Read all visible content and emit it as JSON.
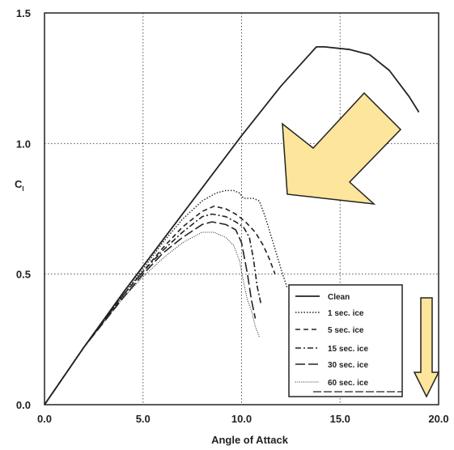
{
  "chart_data": {
    "type": "line",
    "xlabel": "Angle of Attack",
    "ylabel": "C",
    "ylabel_sub": "l",
    "xlim": [
      0,
      20
    ],
    "ylim": [
      0,
      1.5
    ],
    "x_ticks": [
      "0.0",
      "5.0",
      "10.0",
      "15.0",
      "20.0"
    ],
    "y_ticks": [
      "0.0",
      "0.5",
      "1.0",
      "1.5"
    ],
    "grid": "dotted, major ticks",
    "legend_placement": "bottom-right",
    "series": [
      {
        "name": "Clean",
        "style": "solid",
        "x": [
          0,
          2,
          4,
          6,
          8,
          10,
          12,
          13.8,
          14.2,
          15.5,
          16.5,
          17.5,
          18.5,
          19
        ],
        "y": [
          0,
          0.22,
          0.43,
          0.63,
          0.83,
          1.03,
          1.22,
          1.37,
          1.37,
          1.36,
          1.34,
          1.28,
          1.18,
          1.12
        ]
      },
      {
        "name": "1 sec. ice",
        "style": "dotted",
        "x": [
          0,
          2,
          4,
          5,
          6,
          7,
          8,
          8.7,
          9.2,
          9.6,
          9.9,
          10.1,
          10.3,
          10.6,
          10.9,
          11.2,
          11.6,
          12.0,
          12.3
        ],
        "y": [
          0,
          0.22,
          0.42,
          0.52,
          0.62,
          0.71,
          0.78,
          0.81,
          0.82,
          0.82,
          0.81,
          0.79,
          0.79,
          0.79,
          0.78,
          0.72,
          0.62,
          0.52,
          0.45
        ]
      },
      {
        "name": "5 sec. ice",
        "style": "dashed",
        "x": [
          0,
          2,
          4,
          5,
          6,
          7,
          8,
          8.6,
          9.2,
          9.7,
          10.2,
          10.7,
          11.1,
          11.4,
          11.7
        ],
        "y": [
          0,
          0.22,
          0.42,
          0.51,
          0.6,
          0.68,
          0.74,
          0.76,
          0.75,
          0.73,
          0.7,
          0.66,
          0.61,
          0.56,
          0.5
        ]
      },
      {
        "name": "15 sec. ice",
        "style": "dashdot",
        "x": [
          0,
          2,
          4,
          5,
          6,
          7,
          8,
          8.5,
          9.2,
          9.7,
          10.1,
          10.4,
          10.6,
          10.8,
          11.0
        ],
        "y": [
          0,
          0.22,
          0.42,
          0.51,
          0.59,
          0.66,
          0.72,
          0.73,
          0.72,
          0.7,
          0.68,
          0.64,
          0.56,
          0.45,
          0.38
        ]
      },
      {
        "name": "30 sec. ice",
        "style": "longdash",
        "x": [
          0,
          2,
          4,
          5,
          6,
          7,
          8,
          8.5,
          9.2,
          9.7,
          10.0,
          10.3,
          10.5,
          10.7
        ],
        "y": [
          0,
          0.22,
          0.41,
          0.5,
          0.58,
          0.64,
          0.69,
          0.7,
          0.69,
          0.67,
          0.62,
          0.5,
          0.4,
          0.33
        ]
      },
      {
        "name": "60 sec. ice",
        "style": "thin-dotted",
        "x": [
          0,
          2,
          4,
          5,
          6,
          7,
          8,
          8.6,
          9.2,
          9.6,
          9.9,
          10.1,
          10.3,
          10.5,
          10.7,
          10.9
        ],
        "y": [
          0,
          0.22,
          0.41,
          0.49,
          0.56,
          0.62,
          0.66,
          0.66,
          0.64,
          0.61,
          0.55,
          0.47,
          0.4,
          0.36,
          0.3,
          0.26
        ]
      }
    ]
  },
  "legend": {
    "entries": [
      "Clean",
      "1 sec. ice",
      "5 sec. ice",
      "15 sec. ice",
      "30 sec. ice",
      "60 sec. ice"
    ]
  },
  "annotations": {
    "big_arrow_color": "#fde59b",
    "down_arrow_color": "#fde59b",
    "arrow_stroke": "#222222"
  }
}
